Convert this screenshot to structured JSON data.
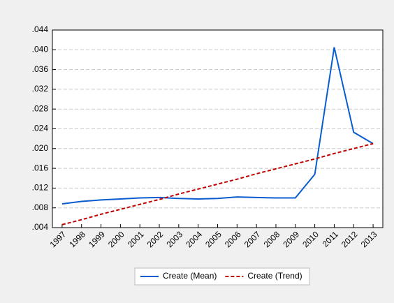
{
  "chart_data": {
    "type": "line",
    "categories": [
      "1997",
      "1998",
      "1999",
      "2000",
      "2001",
      "2002",
      "2003",
      "2004",
      "2005",
      "2006",
      "2007",
      "2008",
      "2009",
      "2010",
      "2011",
      "2012",
      "2013"
    ],
    "series": [
      {
        "name": "Create (Mean)",
        "color": "#0a5cd0",
        "dash": false,
        "values": [
          0.0088,
          0.0093,
          0.0096,
          0.0098,
          0.01,
          0.0101,
          0.0099,
          0.0098,
          0.0099,
          0.0102,
          0.0101,
          0.01,
          0.01,
          0.0148,
          0.0405,
          0.0233,
          0.021
        ]
      },
      {
        "name": "Create (Trend)",
        "color": "#c00000",
        "dash": true,
        "values": [
          0.0046,
          0.0056,
          0.0067,
          0.0077,
          0.0087,
          0.0097,
          0.0108,
          0.0118,
          0.0128,
          0.0138,
          0.0149,
          0.0159,
          0.0169,
          0.0179,
          0.019,
          0.02,
          0.021
        ]
      }
    ],
    "ylim": [
      0.004,
      0.044
    ],
    "yticks": [
      {
        "value": 0.004,
        "label": ".004"
      },
      {
        "value": 0.008,
        "label": ".008"
      },
      {
        "value": 0.012,
        "label": ".012"
      },
      {
        "value": 0.016,
        "label": ".016"
      },
      {
        "value": 0.02,
        "label": ".020"
      },
      {
        "value": 0.024,
        "label": ".024"
      },
      {
        "value": 0.028,
        "label": ".028"
      },
      {
        "value": 0.032,
        "label": ".032"
      },
      {
        "value": 0.036,
        "label": ".036"
      },
      {
        "value": 0.04,
        "label": ".040"
      },
      {
        "value": 0.044,
        "label": ".044"
      }
    ],
    "grid": true,
    "legend": "bottom"
  }
}
